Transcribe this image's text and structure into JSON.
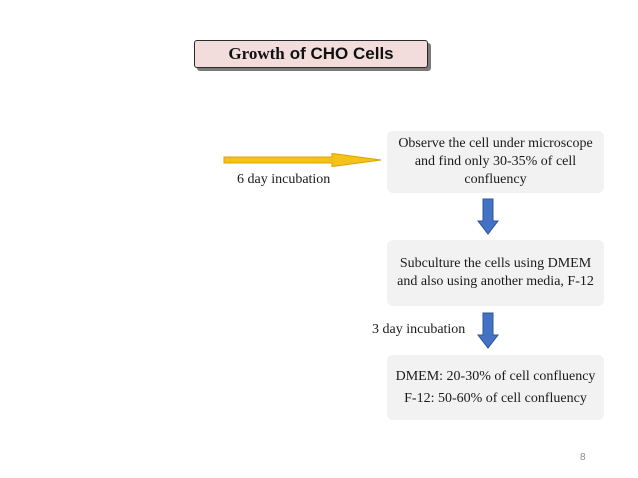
{
  "title": {
    "part1": "Growth",
    "part2": "of CHO Cells"
  },
  "steps": [
    {
      "lines": [
        "Observe the cell under microscope",
        "and find only 30-35% of cell",
        "confluency"
      ]
    },
    {
      "lines": [
        "Subculture the cells using DMEM",
        "and also using another media, F-12"
      ]
    },
    {
      "lines": [
        "DMEM: 20-30% of cell confluency",
        "F-12: 50-60% of cell confluency"
      ]
    }
  ],
  "incubation_labels": [
    "6 day incubation",
    "3 day incubation"
  ],
  "page_number": "8",
  "colors": {
    "title_fill": "#f3dcdc",
    "box_fill": "#f2f2f2",
    "yellow_arrow": "#f5c219",
    "blue_arrow": "#4472c4"
  }
}
